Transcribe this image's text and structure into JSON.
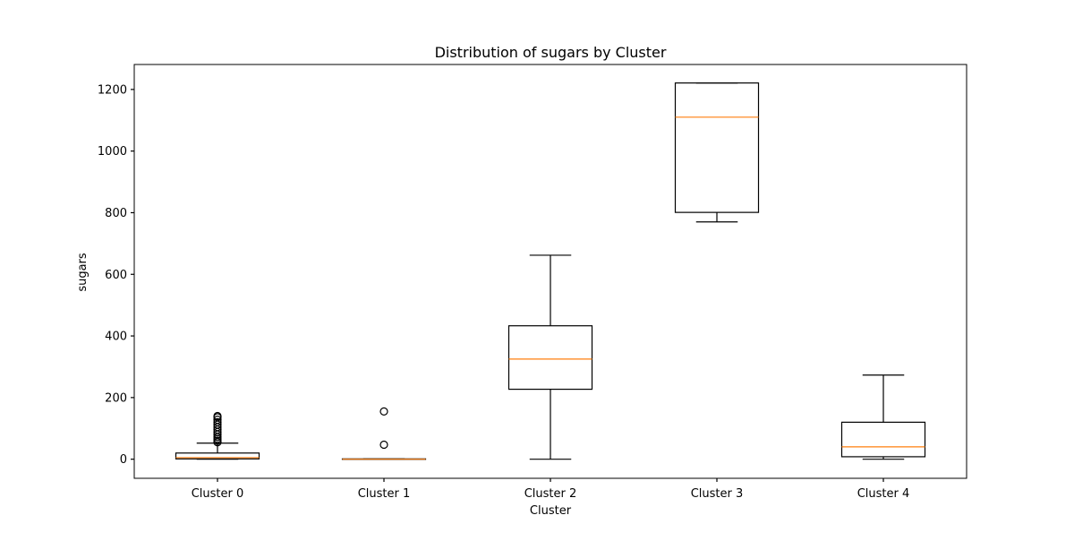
{
  "chart_data": {
    "type": "box",
    "title": "Distribution of sugars by Cluster",
    "xlabel": "Cluster",
    "ylabel": "sugars",
    "categories": [
      "Cluster 0",
      "Cluster 1",
      "Cluster 2",
      "Cluster 3",
      "Cluster 4"
    ],
    "ylim": [
      -62,
      1281
    ],
    "yticks": [
      0,
      200,
      400,
      600,
      800,
      1000,
      1200
    ],
    "grid": false,
    "legend": "none",
    "boxes": [
      {
        "category": "Cluster 0",
        "whisker_low": 0,
        "q1": 1,
        "median": 5,
        "q3": 20,
        "whisker_high": 52,
        "outliers": [
          55,
          60,
          66,
          72,
          80,
          88,
          96,
          104,
          112,
          120,
          128,
          136,
          140
        ]
      },
      {
        "category": "Cluster 1",
        "whisker_low": 0,
        "q1": 0,
        "median": 0,
        "q3": 1,
        "whisker_high": 1,
        "outliers": [
          47,
          155
        ]
      },
      {
        "category": "Cluster 2",
        "whisker_low": 0,
        "q1": 227,
        "median": 325,
        "q3": 433,
        "whisker_high": 662,
        "outliers": []
      },
      {
        "category": "Cluster 3",
        "whisker_low": 770,
        "q1": 801,
        "median": 1110,
        "q3": 1221,
        "whisker_high": 1221,
        "outliers": []
      },
      {
        "category": "Cluster 4",
        "whisker_low": 0,
        "q1": 8,
        "median": 40,
        "q3": 120,
        "whisker_high": 273,
        "outliers": []
      }
    ],
    "colors": {
      "box": "#000000",
      "median": "#ff7f0e",
      "outlier": "#000000"
    }
  }
}
